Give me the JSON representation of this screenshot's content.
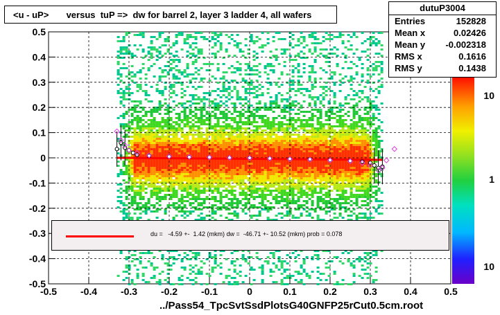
{
  "title": "<u - uP>       versus  tuP =>  dw for barrel 2, layer 3 ladder 4, all wafers",
  "stats": {
    "name": "dutuP3004",
    "rows": [
      {
        "key": "Entries",
        "value": "152828"
      },
      {
        "key": "Mean x",
        "value": "0.02426"
      },
      {
        "key": "Mean y",
        "value": "-0.002318"
      },
      {
        "key": "RMS x",
        "value": "0.1616"
      },
      {
        "key": "RMS y",
        "value": "0.1438"
      }
    ]
  },
  "xlabel_file": "../Pass54_TpcSvtSsdPlotsG40GNFP25rCut0.5cm.root",
  "fit": {
    "text": "du =   -4.59 +-  1.42 (mkm) dw =  -46.71 +- 10.52 (mkm) prob = 0.078",
    "line_color": "#ff0000"
  },
  "chart_data": {
    "type": "heatmap",
    "title": "<u - uP>       versus  tuP =>  dw for barrel 2, layer 3 ladder 4, all wafers",
    "xlabel": "../Pass54_TpcSvtSsdPlotsG40GNFP25rCut0.5cm.root",
    "ylabel": "",
    "xlim": [
      -0.5,
      0.5
    ],
    "ylim": [
      -0.5,
      0.5
    ],
    "x_ticks": [
      "-0.5",
      "-0.4",
      "-0.3",
      "-0.2",
      "-0.1",
      "0",
      "0.1",
      "0.2",
      "0.3",
      "0.4",
      "0.5"
    ],
    "y_ticks": [
      "-0.5",
      "-0.4",
      "-0.3",
      "-0.2",
      "-0.1",
      "0",
      "0.1",
      "0.2",
      "0.3",
      "0.4",
      "0.5"
    ],
    "colorbar_ticks": [
      "10",
      "1",
      "10"
    ],
    "grid": true,
    "density_x_range": [
      -0.33,
      0.33
    ],
    "profile_black": {
      "x": [
        -0.33,
        -0.32,
        -0.31,
        -0.3,
        -0.29,
        -0.28,
        -0.25,
        -0.2,
        -0.15,
        -0.1,
        -0.05,
        0,
        0.05,
        0.1,
        0.15,
        0.2,
        0.25,
        0.28,
        0.3,
        0.31,
        0.32,
        0.33
      ],
      "y": [
        0.035,
        0.06,
        0.04,
        0.03,
        0.02,
        0.012,
        0.008,
        0.005,
        0.003,
        0.002,
        0.001,
        0.0,
        -0.002,
        -0.004,
        -0.006,
        -0.009,
        -0.012,
        -0.015,
        -0.02,
        -0.03,
        -0.04,
        -0.035
      ]
    },
    "profile_magenta": {
      "x": [
        -0.33,
        -0.32,
        -0.31,
        -0.3,
        -0.28,
        -0.25,
        -0.2,
        -0.15,
        -0.1,
        -0.05,
        0,
        0.05,
        0.1,
        0.15,
        0.2,
        0.25,
        0.28,
        0.3,
        0.32,
        0.33,
        0.34,
        0.36
      ],
      "y": [
        0.105,
        0.07,
        0.05,
        0.03,
        0.02,
        0.01,
        0.006,
        0.004,
        0.002,
        0.0,
        -0.001,
        -0.003,
        -0.005,
        -0.007,
        -0.01,
        -0.013,
        -0.02,
        -0.03,
        -0.05,
        -0.04,
        -0.01,
        0.035
      ]
    },
    "fit_line": {
      "x": [
        -0.33,
        0.33
      ],
      "y": [
        0.0,
        -0.008
      ],
      "color": "#ff0000"
    }
  }
}
